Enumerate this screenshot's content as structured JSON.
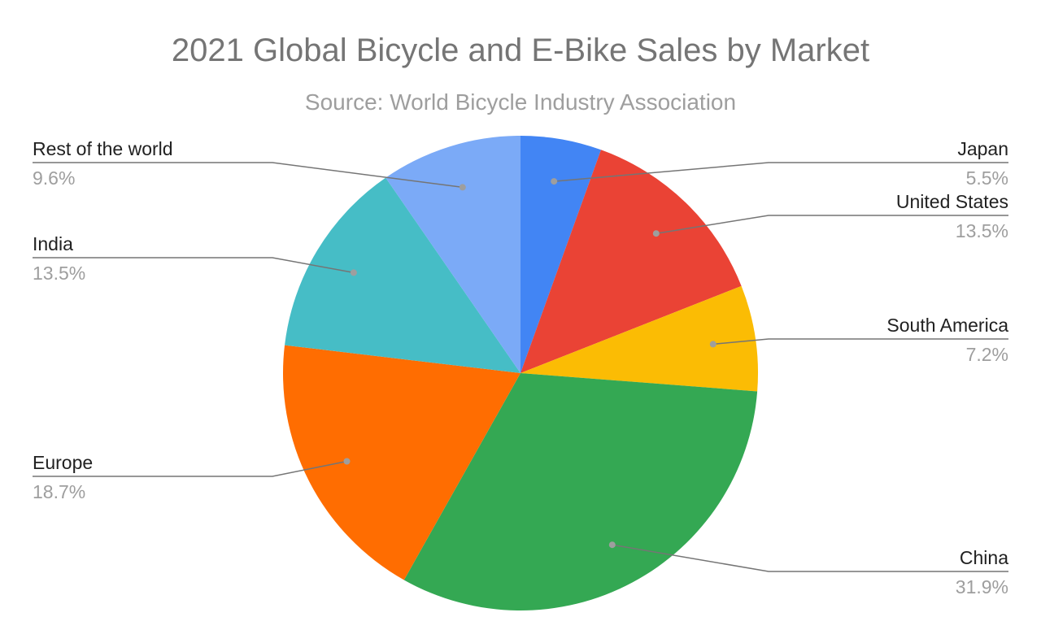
{
  "chart_data": {
    "type": "pie",
    "title": "2021 Global Bicycle and E-Bike Sales by Market",
    "subtitle": "Source: World Bicycle Industry Association",
    "slices": [
      {
        "label": "Japan",
        "value": 5.5,
        "display": "5.5%",
        "color": "#4285F4"
      },
      {
        "label": "United States",
        "value": 13.5,
        "display": "13.5%",
        "color": "#EA4335"
      },
      {
        "label": "South America",
        "value": 7.2,
        "display": "7.2%",
        "color": "#FBBC04"
      },
      {
        "label": "China",
        "value": 31.9,
        "display": "31.9%",
        "color": "#34A853"
      },
      {
        "label": "Europe",
        "value": 18.7,
        "display": "18.7%",
        "color": "#FF6D01"
      },
      {
        "label": "India",
        "value": 13.5,
        "display": "13.5%",
        "color": "#46BDC6"
      },
      {
        "label": "Rest of the world",
        "value": 9.6,
        "display": "9.6%",
        "color": "#7BAAF7"
      }
    ],
    "start_angle": "12 o'clock",
    "direction": "clockwise",
    "legend": "callout labels"
  }
}
